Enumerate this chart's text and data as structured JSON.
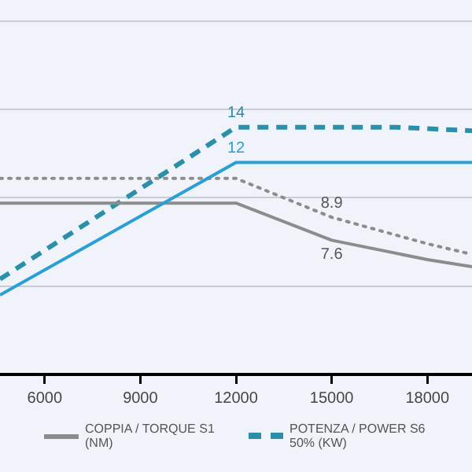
{
  "chart_data": {
    "type": "line",
    "xlim": [
      4600,
      19400
    ],
    "xticks": [
      6000,
      9000,
      12000,
      15000,
      18000
    ],
    "ylim": [
      0,
      21.2
    ],
    "yticks": [
      {
        "value": 5,
        "label": null
      },
      {
        "value": 10,
        "label": null
      },
      {
        "value": 15,
        "label": null
      },
      {
        "value": 20,
        "label": null
      }
    ],
    "tick_labels": "x",
    "grid": "y",
    "marker": "none",
    "legend": "bottom",
    "series": [
      {
        "color": "#2a9fd6",
        "line_style": "solid",
        "x": [
          4600,
          12000,
          19400
        ],
        "values": [
          4.5,
          12,
          12
        ],
        "value_labels": [
          null,
          "12",
          null
        ]
      },
      {
        "name": "COPPIA / TORQUE S1 (NM)",
        "color": "#8c8c8c",
        "line_style": "solid",
        "x": [
          4600,
          12000,
          15000,
          18000,
          19400
        ],
        "values": [
          9.7,
          9.7,
          7.6,
          6.5,
          6.1
        ],
        "value_labels": [
          null,
          null,
          "7.6",
          null,
          null
        ]
      },
      {
        "name": "POTENZA / POWER S6 50% (KW)",
        "color": "#2a8fa8",
        "line_style": "dashed",
        "x": [
          4600,
          12000,
          17000,
          19400
        ],
        "values": [
          5.4,
          14,
          14,
          13.8
        ],
        "value_labels": [
          null,
          "14",
          null,
          null
        ]
      },
      {
        "color": "#8c8c8c",
        "line_style": "dotted",
        "x": [
          4600,
          12000,
          15000,
          18000,
          19400
        ],
        "values": [
          11.1,
          11.1,
          8.9,
          7.4,
          6.8
        ],
        "value_labels": [
          null,
          null,
          "8.9",
          null,
          null
        ]
      }
    ]
  }
}
